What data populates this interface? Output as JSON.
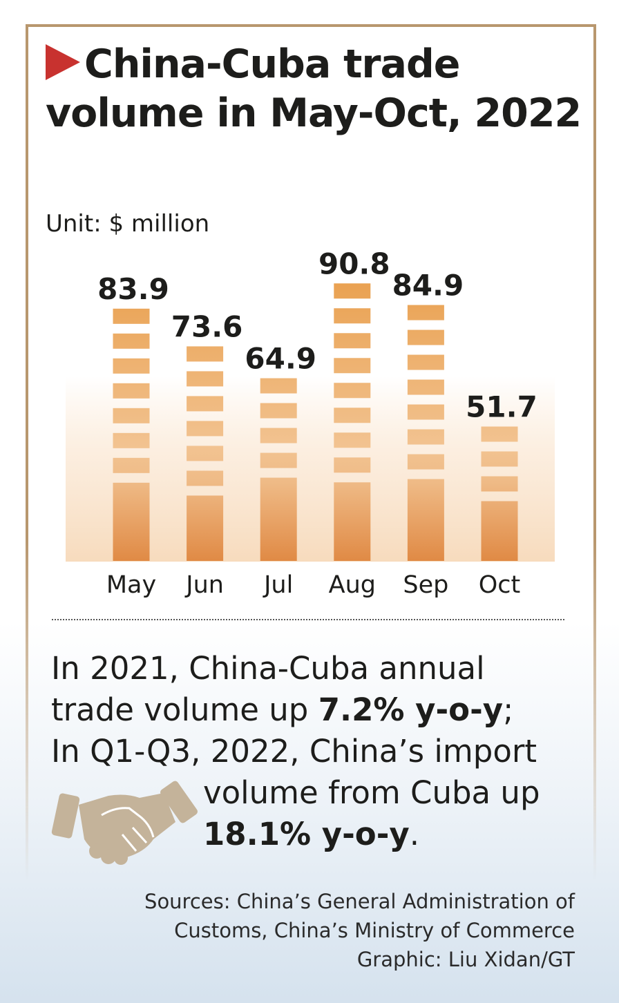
{
  "title": "China-Cuba trade volume in May-Oct, 2022",
  "unit": "Unit: $ million",
  "chart_data": {
    "type": "bar",
    "title": "China-Cuba trade volume in May-Oct, 2022",
    "ylabel": "Unit: $ million",
    "categories": [
      "May",
      "Jun",
      "Jul",
      "Aug",
      "Sep",
      "Oct"
    ],
    "values": [
      83.9,
      73.6,
      64.9,
      90.8,
      84.9,
      51.7
    ],
    "value_labels": [
      "83.9",
      "73.6",
      "64.9",
      "90.8",
      "84.9",
      "51.7"
    ],
    "colors": {
      "bar": "#e9a04f",
      "bar_bottom": "#e08a45",
      "background": "#f8dcbc"
    }
  },
  "text": {
    "l1": "In 2021, China-Cuba annual",
    "l2a": "trade volume up ",
    "l2b": "7.2% y-o-y",
    "l2c": ";",
    "l3": "In Q1-Q3, 2022, China’s import",
    "l4": "volume from Cuba up",
    "l5a": "18.1% y-o-y",
    "l5b": "."
  },
  "sources": {
    "l1": "Sources: China’s General Administration of",
    "l2": "Customs, China’s Ministry of Commerce",
    "l3": "Graphic: Liu Xidan/GT"
  }
}
